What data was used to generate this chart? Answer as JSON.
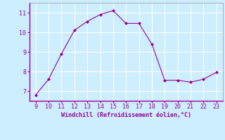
{
  "x": [
    9,
    10,
    11,
    12,
    13,
    14,
    15,
    16,
    17,
    18,
    19,
    20,
    21,
    22,
    23
  ],
  "y": [
    6.8,
    7.6,
    8.9,
    10.1,
    10.55,
    10.9,
    11.1,
    10.45,
    10.45,
    9.4,
    7.55,
    7.55,
    7.45,
    7.6,
    7.95
  ],
  "line_color": "#990099",
  "marker": "D",
  "marker_size": 2,
  "bg_color": "#cceeff",
  "grid_color": "#ffffff",
  "xlabel": "Windchill (Refroidissement éolien,°C)",
  "xlabel_color": "#990099",
  "tick_color": "#990099",
  "spine_color": "#999999",
  "xlim": [
    8.5,
    23.5
  ],
  "ylim": [
    6.5,
    11.5
  ],
  "xticks": [
    9,
    10,
    11,
    12,
    13,
    14,
    15,
    16,
    17,
    18,
    19,
    20,
    21,
    22,
    23
  ],
  "yticks": [
    7,
    8,
    9,
    10,
    11
  ],
  "figsize": [
    3.2,
    2.0
  ],
  "dpi": 100
}
